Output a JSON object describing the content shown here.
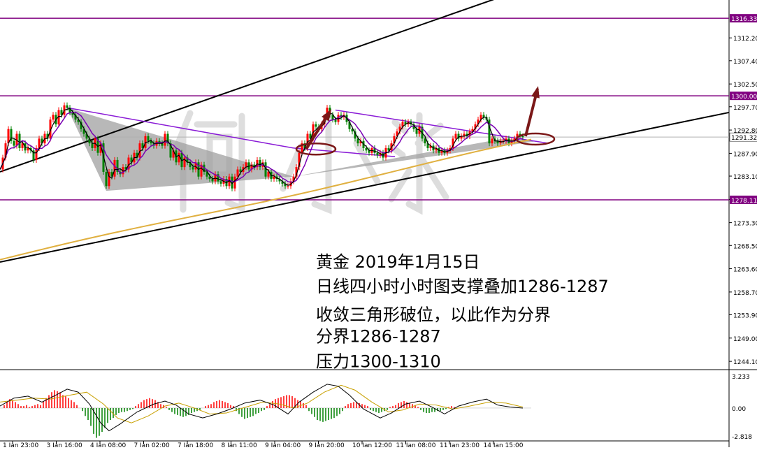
{
  "chart_data": [
    {
      "type": "candlestick",
      "symbol": "XAUUSD",
      "timeframe": "H4",
      "ylim": [
        1242.5,
        1319.0
      ],
      "price_ticks": [
        1312.2,
        1307.4,
        1302.5,
        1297.7,
        1292.8,
        1287.9,
        1283.1,
        1278.2,
        1273.3,
        1268.5,
        1263.6,
        1258.7,
        1253.9,
        1249.0,
        1244.1
      ],
      "x_ticks": [
        "1 Jan 23:00",
        "3 Jan 16:00",
        "4 Jan 08:00",
        "7 Jan 02:00",
        "7 Jan 18:00",
        "8 Jan 11:00",
        "9 Jan 04:00",
        "9 Jan 20:00",
        "10 Jan 12:00",
        "11 Jan 08:00",
        "11 Jan 23:00",
        "14 Jan 15:00"
      ],
      "current_price": "1291.32",
      "horizontal_levels": [
        {
          "value": 1316.33,
          "label": "1316.33"
        },
        {
          "value": 1300.0,
          "label": "1300.00"
        },
        {
          "value": 1278.11,
          "label": "1278.11"
        }
      ],
      "close_path": [
        [
          0,
          1284.5
        ],
        [
          4,
          1287
        ],
        [
          8,
          1290
        ],
        [
          12,
          1293
        ],
        [
          16,
          1290.5
        ],
        [
          20,
          1289.5
        ],
        [
          24,
          1292
        ],
        [
          28,
          1289
        ],
        [
          32,
          1290
        ],
        [
          36,
          1288.5
        ],
        [
          40,
          1289
        ],
        [
          44,
          1288.5
        ],
        [
          48,
          1286.5
        ],
        [
          52,
          1289
        ],
        [
          56,
          1291
        ],
        [
          60,
          1290
        ],
        [
          64,
          1292
        ],
        [
          68,
          1291
        ],
        [
          72,
          1295
        ],
        [
          76,
          1296
        ],
        [
          80,
          1294
        ],
        [
          84,
          1297
        ],
        [
          88,
          1296
        ],
        [
          92,
          1298
        ],
        [
          96,
          1297.5
        ],
        [
          100,
          1296.5
        ],
        [
          104,
          1296
        ],
        [
          108,
          1295
        ],
        [
          112,
          1294.5
        ],
        [
          116,
          1293
        ],
        [
          120,
          1292
        ],
        [
          124,
          1291
        ],
        [
          128,
          1290
        ],
        [
          132,
          1289
        ],
        [
          136,
          1291
        ],
        [
          140,
          1288
        ],
        [
          144,
          1290
        ],
        [
          148,
          1284
        ],
        [
          152,
          1281
        ],
        [
          156,
          1284
        ],
        [
          160,
          1283
        ],
        [
          164,
          1286.5
        ],
        [
          168,
          1284
        ],
        [
          172,
          1283.5
        ],
        [
          176,
          1285
        ],
        [
          180,
          1284.5
        ],
        [
          184,
          1287
        ],
        [
          188,
          1286
        ],
        [
          192,
          1288
        ],
        [
          196,
          1287
        ],
        [
          200,
          1290
        ],
        [
          204,
          1289
        ],
        [
          208,
          1291.5
        ],
        [
          212,
          1290.5
        ],
        [
          216,
          1290
        ],
        [
          220,
          1289.5
        ],
        [
          224,
          1290.5
        ],
        [
          228,
          1290
        ],
        [
          232,
          1289.5
        ],
        [
          236,
          1292
        ],
        [
          240,
          1290
        ],
        [
          244,
          1287
        ],
        [
          248,
          1288.5
        ],
        [
          252,
          1286
        ],
        [
          256,
          1288
        ],
        [
          260,
          1285
        ],
        [
          264,
          1287
        ],
        [
          268,
          1286
        ],
        [
          272,
          1285
        ],
        [
          276,
          1284.5
        ],
        [
          280,
          1286
        ],
        [
          284,
          1283
        ],
        [
          288,
          1285.5
        ],
        [
          292,
          1284
        ],
        [
          296,
          1283
        ],
        [
          300,
          1282.5
        ],
        [
          304,
          1282
        ],
        [
          308,
          1283.5
        ],
        [
          312,
          1282
        ],
        [
          316,
          1281.5
        ],
        [
          320,
          1282.5
        ],
        [
          324,
          1281
        ],
        [
          328,
          1283
        ],
        [
          332,
          1280.5
        ],
        [
          336,
          1283
        ],
        [
          340,
          1284.5
        ],
        [
          344,
          1284
        ],
        [
          348,
          1285
        ],
        [
          352,
          1286
        ],
        [
          356,
          1284.5
        ],
        [
          360,
          1285.5
        ],
        [
          364,
          1285
        ],
        [
          368,
          1286.5
        ],
        [
          372,
          1285
        ],
        [
          376,
          1286
        ],
        [
          380,
          1283
        ],
        [
          384,
          1284
        ],
        [
          388,
          1282.5
        ],
        [
          392,
          1283
        ],
        [
          396,
          1282.5
        ],
        [
          400,
          1282
        ],
        [
          404,
          1281.5
        ],
        [
          408,
          1281
        ],
        [
          412,
          1281
        ],
        [
          416,
          1282
        ],
        [
          420,
          1283
        ],
        [
          424,
          1285
        ],
        [
          428,
          1288
        ],
        [
          432,
          1290
        ],
        [
          436,
          1289
        ],
        [
          440,
          1292
        ],
        [
          444,
          1291
        ],
        [
          448,
          1294
        ],
        [
          452,
          1293.5
        ],
        [
          456,
          1293
        ],
        [
          460,
          1294
        ],
        [
          464,
          1295.5
        ],
        [
          468,
          1297.5
        ],
        [
          472,
          1296
        ],
        [
          476,
          1295
        ],
        [
          480,
          1294.5
        ],
        [
          484,
          1296
        ],
        [
          488,
          1295.5
        ],
        [
          492,
          1296
        ],
        [
          496,
          1294.5
        ],
        [
          500,
          1293
        ],
        [
          504,
          1292.5
        ],
        [
          508,
          1291
        ],
        [
          512,
          1290
        ],
        [
          516,
          1290.5
        ],
        [
          520,
          1289
        ],
        [
          524,
          1288.5
        ],
        [
          528,
          1288
        ],
        [
          532,
          1289
        ],
        [
          536,
          1288
        ],
        [
          540,
          1287.5
        ],
        [
          544,
          1288
        ],
        [
          548,
          1287
        ],
        [
          552,
          1289
        ],
        [
          556,
          1288.5
        ],
        [
          560,
          1290
        ],
        [
          564,
          1291.5
        ],
        [
          568,
          1292.5
        ],
        [
          572,
          1293.5
        ],
        [
          576,
          1294.5
        ],
        [
          580,
          1294
        ],
        [
          584,
          1294.5
        ],
        [
          588,
          1294
        ],
        [
          592,
          1293
        ],
        [
          596,
          1292
        ],
        [
          600,
          1293.5
        ],
        [
          604,
          1291
        ],
        [
          608,
          1290
        ],
        [
          612,
          1289
        ],
        [
          616,
          1289.5
        ],
        [
          620,
          1288.5
        ],
        [
          624,
          1289
        ],
        [
          628,
          1288
        ],
        [
          632,
          1288.5
        ],
        [
          636,
          1288
        ],
        [
          640,
          1288.5
        ],
        [
          644,
          1289
        ],
        [
          648,
          1291
        ],
        [
          652,
          1292
        ],
        [
          656,
          1291
        ],
        [
          660,
          1291.5
        ],
        [
          664,
          1292
        ],
        [
          668,
          1291.5
        ],
        [
          672,
          1292.5
        ],
        [
          676,
          1293
        ],
        [
          680,
          1294
        ],
        [
          684,
          1295
        ],
        [
          688,
          1296
        ],
        [
          692,
          1295.5
        ],
        [
          696,
          1295
        ],
        [
          700,
          1290
        ],
        [
          704,
          1291
        ],
        [
          708,
          1290.5
        ],
        [
          712,
          1290
        ],
        [
          716,
          1290.5
        ],
        [
          720,
          1290.5
        ],
        [
          724,
          1291
        ],
        [
          728,
          1290
        ],
        [
          732,
          1290.5
        ],
        [
          736,
          1291
        ],
        [
          740,
          1292
        ],
        [
          744,
          1291.5
        ],
        [
          748,
          1291.3
        ]
      ],
      "triangle_shadings": [
        [
          [
            96,
            1297.5
          ],
          [
            152,
            1280
          ],
          [
            420,
            1283
          ]
        ],
        [
          [
            420,
            1283
          ],
          [
            720,
            1291
          ],
          [
            770,
            1290.5
          ]
        ]
      ],
      "annotations": [
        {
          "text": "黄金 2019年1月15日"
        },
        {
          "text": "日线四小时小时图支撑叠加1286-1287"
        },
        {
          "text": "收敛三角形破位，以此作为分界"
        },
        {
          "text": "分界1286-1287"
        },
        {
          "text": "压力1300-1310"
        }
      ],
      "watermark": "何小冰",
      "colors": {
        "up": "#ff0000",
        "down": "#008000",
        "ma_fast": "#000000",
        "ma_slow": "#7a00b3",
        "ma_long": "#e0b040",
        "level": "#800080",
        "channel": "#000000",
        "arrow": "#7b1818",
        "circle": "#7b1818",
        "triangle": "#9c9c9c"
      }
    },
    {
      "type": "macd",
      "ylim": [
        -2.818,
        3.233
      ],
      "tick_labels": [
        "3.233",
        "0.00",
        "-2.818"
      ],
      "histogram_sample_step_px": 4,
      "histogram": [
        0.3,
        0.6,
        0.9,
        0.8,
        0.6,
        0.4,
        0.2,
        0.2,
        0.3,
        0.1,
        0.2,
        0.3,
        0.4,
        0.3,
        0.7,
        1.0,
        1.3,
        1.6,
        1.8,
        1.7,
        1.6,
        1.3,
        1.2,
        1.0,
        0.8,
        0.6,
        0.3,
        0.0,
        -0.3,
        -0.8,
        -1.2,
        -1.8,
        -2.6,
        -3.0,
        -2.8,
        -2.4,
        -2.0,
        -1.5,
        -1.2,
        -1.0,
        -0.7,
        -0.5,
        -0.4,
        -0.4,
        -0.3,
        -0.2,
        -0.1,
        0.2,
        0.4,
        0.6,
        0.8,
        0.9,
        1.0,
        0.9,
        0.8,
        0.6,
        0.4,
        0.3,
        0.1,
        -0.2,
        -0.4,
        -0.6,
        -0.7,
        -0.8,
        -0.9,
        -0.8,
        -0.7,
        -0.5,
        -0.4,
        -0.3,
        -0.2,
        0.0,
        0.2,
        0.3,
        0.4,
        0.6,
        0.7,
        0.8,
        0.7,
        0.6,
        0.5,
        0.3,
        0.2,
        -0.3,
        -0.6,
        -0.9,
        -1.1,
        -1.0,
        -0.9,
        -0.8,
        -0.6,
        -0.5,
        -0.3,
        -0.2,
        0.2,
        0.4,
        0.7,
        0.9,
        1.0,
        1.1,
        1.2,
        1.3,
        1.3,
        1.2,
        1.0,
        0.8,
        0.7,
        0.5,
        0.3,
        -0.3,
        -0.6,
        -0.9,
        -1.2,
        -1.3,
        -1.4,
        -1.3,
        -1.2,
        -1.1,
        -1.0,
        -0.8,
        -0.6,
        -0.3,
        0.2,
        0.4,
        0.5,
        0.6,
        0.6,
        0.5,
        0.4,
        0.3,
        0.2,
        -0.2,
        -0.3,
        -0.4,
        -0.5,
        -0.4,
        -0.3,
        -0.2,
        0.1,
        0.2,
        0.3,
        0.5,
        0.6,
        0.7,
        0.6,
        0.5,
        0.4,
        0.3,
        0.1,
        -0.2,
        -0.4,
        -0.5,
        -0.5,
        -0.4,
        -0.4,
        -0.3,
        -0.3,
        -0.2,
        -0.1,
        0.1,
        0.2,
        0.1
      ],
      "macd_line": [
        [
          0,
          0.2
        ],
        [
          20,
          1.0
        ],
        [
          40,
          1.2
        ],
        [
          60,
          0.6
        ],
        [
          80,
          1.3
        ],
        [
          96,
          1.9
        ],
        [
          112,
          1.6
        ],
        [
          128,
          0.4
        ],
        [
          144,
          -1.5
        ],
        [
          156,
          -2.3
        ],
        [
          172,
          -1.6
        ],
        [
          196,
          -0.4
        ],
        [
          220,
          0.4
        ],
        [
          236,
          0.7
        ],
        [
          252,
          0.3
        ],
        [
          270,
          -0.6
        ],
        [
          290,
          -1.0
        ],
        [
          310,
          -0.6
        ],
        [
          330,
          -0.1
        ],
        [
          350,
          0.5
        ],
        [
          372,
          0.8
        ],
        [
          392,
          0.3
        ],
        [
          412,
          -0.6
        ],
        [
          428,
          0.6
        ],
        [
          448,
          1.6
        ],
        [
          468,
          2.4
        ],
        [
          484,
          2.2
        ],
        [
          500,
          1.3
        ],
        [
          520,
          -0.1
        ],
        [
          544,
          -1.0
        ],
        [
          560,
          -0.5
        ],
        [
          580,
          0.4
        ],
        [
          600,
          0.7
        ],
        [
          618,
          0.1
        ],
        [
          636,
          -0.6
        ],
        [
          656,
          0.2
        ],
        [
          676,
          0.6
        ],
        [
          696,
          0.9
        ],
        [
          712,
          0.3
        ],
        [
          730,
          0.1
        ],
        [
          748,
          0.0
        ]
      ],
      "signal_line": [
        [
          0,
          0.6
        ],
        [
          24,
          0.8
        ],
        [
          48,
          1.0
        ],
        [
          72,
          0.9
        ],
        [
          100,
          1.3
        ],
        [
          124,
          1.6
        ],
        [
          148,
          0.4
        ],
        [
          168,
          -1.0
        ],
        [
          188,
          -1.5
        ],
        [
          212,
          -0.8
        ],
        [
          236,
          0.2
        ],
        [
          256,
          0.5
        ],
        [
          278,
          0.0
        ],
        [
          300,
          -0.6
        ],
        [
          324,
          -0.5
        ],
        [
          352,
          0.1
        ],
        [
          376,
          0.6
        ],
        [
          400,
          0.4
        ],
        [
          420,
          0.0
        ],
        [
          440,
          0.5
        ],
        [
          464,
          1.6
        ],
        [
          488,
          2.3
        ],
        [
          508,
          1.8
        ],
        [
          532,
          0.6
        ],
        [
          556,
          -0.4
        ],
        [
          576,
          -0.2
        ],
        [
          600,
          0.4
        ],
        [
          624,
          0.3
        ],
        [
          648,
          -0.1
        ],
        [
          672,
          0.2
        ],
        [
          700,
          0.6
        ],
        [
          724,
          0.5
        ],
        [
          748,
          0.1
        ]
      ]
    }
  ]
}
